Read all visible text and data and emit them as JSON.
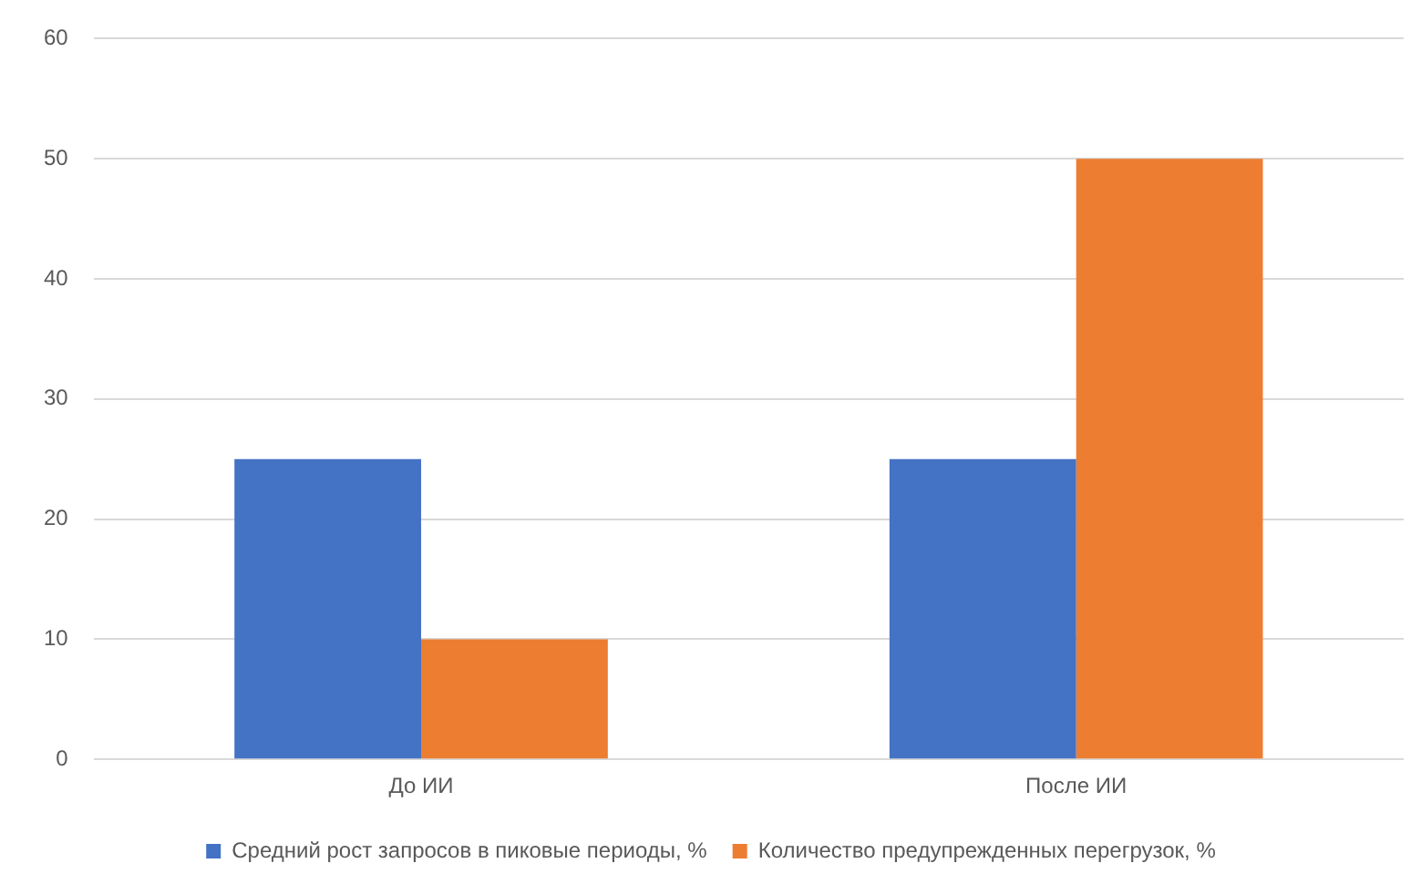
{
  "chart_data": {
    "type": "bar",
    "categories": [
      "До ИИ",
      "После ИИ"
    ],
    "series": [
      {
        "name": "Средний рост запросов в пиковые периоды, %",
        "color": "#4472c4",
        "values": [
          25,
          25
        ]
      },
      {
        "name": "Количество предупрежденных перегрузок, %",
        "color": "#ed7d31",
        "values": [
          10,
          50
        ]
      }
    ],
    "ylim": [
      0,
      60
    ],
    "yticks": [
      0,
      10,
      20,
      30,
      40,
      50,
      60
    ],
    "grid": "y",
    "legend": "bottom"
  }
}
